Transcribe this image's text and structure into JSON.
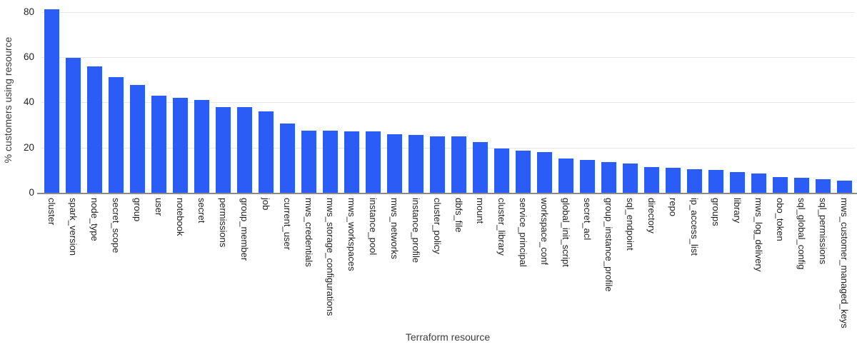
{
  "chart_data": {
    "type": "bar",
    "title": "",
    "xlabel": "Terraform resource",
    "ylabel": "% customers using resource",
    "categories": [
      "cluster",
      "spark_version",
      "node_type",
      "secret_scope",
      "group",
      "user",
      "notebook",
      "secret",
      "permissions",
      "group_member",
      "job",
      "current_user",
      "mws_credentials",
      "mws_storage_configurations",
      "mws_workspaces",
      "instance_pool",
      "mws_networks",
      "instance_profile",
      "cluster_policy",
      "dbfs_file",
      "mount",
      "cluster_library",
      "service_principal",
      "workspace_conf",
      "global_init_script",
      "secret_acl",
      "group_instance_profile",
      "sql_endpoint",
      "directory",
      "repo",
      "ip_access_list",
      "groups",
      "library",
      "mws_log_delivery",
      "obo_token",
      "sql_global_config",
      "sql_permissions",
      "mws_customer_managed_keys"
    ],
    "values": [
      81,
      59.5,
      56,
      51,
      47.5,
      43,
      42,
      41,
      38,
      38,
      36,
      30.5,
      27.5,
      27.5,
      27,
      27,
      26,
      25.5,
      25,
      25,
      22.5,
      19.5,
      18.5,
      18,
      15,
      14.5,
      13.5,
      13,
      11.5,
      11,
      10.5,
      10,
      9,
      8.5,
      7,
      6.5,
      6,
      5.5
    ],
    "ylim": [
      0,
      80
    ],
    "yticks": [
      0,
      20,
      40,
      60,
      80
    ],
    "grid": true,
    "legend": "none",
    "colors": {
      "bar": "#2b5cf5",
      "gridline": "#e8e8e8",
      "axis_line": "#8a8a8a",
      "tick_label": "#1f1f1f",
      "axis_title": "#3c3c3c"
    }
  }
}
